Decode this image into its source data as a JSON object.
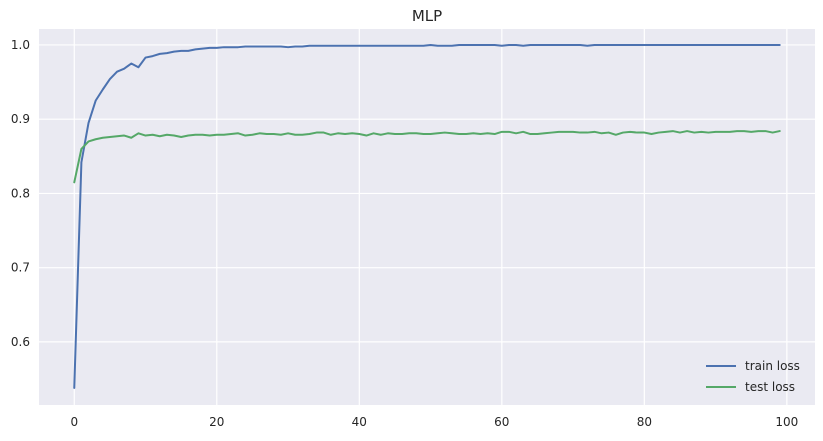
{
  "chart_data": {
    "type": "line",
    "title": "MLP",
    "xlabel": "",
    "ylabel": "",
    "xlim": [
      -4.95,
      103.95
    ],
    "ylim": [
      0.515,
      1.0215
    ],
    "xticks": [
      0,
      20,
      40,
      60,
      80,
      100
    ],
    "yticks": [
      0.6,
      0.7,
      0.8,
      0.9,
      1.0
    ],
    "ytick_labels": [
      "0.6",
      "0.7",
      "0.8",
      "0.9",
      "1.0"
    ],
    "grid": true,
    "legend_position": "bottom-right",
    "background": "#eaeaf2",
    "series": [
      {
        "name": "train loss",
        "color": "#4c72b0",
        "x": [
          0,
          1,
          2,
          3,
          4,
          5,
          6,
          7,
          8,
          9,
          10,
          11,
          12,
          13,
          14,
          15,
          16,
          17,
          18,
          19,
          20,
          21,
          22,
          23,
          24,
          25,
          26,
          27,
          28,
          29,
          30,
          31,
          32,
          33,
          34,
          35,
          36,
          37,
          38,
          39,
          40,
          41,
          42,
          43,
          44,
          45,
          46,
          47,
          48,
          49,
          50,
          51,
          52,
          53,
          54,
          55,
          56,
          57,
          58,
          59,
          60,
          61,
          62,
          63,
          64,
          65,
          66,
          67,
          68,
          69,
          70,
          71,
          72,
          73,
          74,
          75,
          76,
          77,
          78,
          79,
          80,
          81,
          82,
          83,
          84,
          85,
          86,
          87,
          88,
          89,
          90,
          91,
          92,
          93,
          94,
          95,
          96,
          97,
          98,
          99
        ],
        "values": [
          0.538,
          0.842,
          0.895,
          0.925,
          0.94,
          0.954,
          0.964,
          0.968,
          0.975,
          0.97,
          0.983,
          0.985,
          0.988,
          0.989,
          0.991,
          0.992,
          0.992,
          0.994,
          0.995,
          0.996,
          0.996,
          0.997,
          0.997,
          0.997,
          0.998,
          0.998,
          0.998,
          0.998,
          0.998,
          0.998,
          0.997,
          0.998,
          0.998,
          0.999,
          0.999,
          0.999,
          0.999,
          0.999,
          0.999,
          0.999,
          0.999,
          0.999,
          0.999,
          0.999,
          0.999,
          0.999,
          0.999,
          0.999,
          0.999,
          0.999,
          1.0,
          0.999,
          0.999,
          0.999,
          1.0,
          1.0,
          1.0,
          1.0,
          1.0,
          1.0,
          0.999,
          1.0,
          1.0,
          0.999,
          1.0,
          1.0,
          1.0,
          1.0,
          1.0,
          1.0,
          1.0,
          1.0,
          0.999,
          1.0,
          1.0,
          1.0,
          1.0,
          1.0,
          1.0,
          1.0,
          1.0,
          1.0,
          1.0,
          1.0,
          1.0,
          1.0,
          1.0,
          1.0,
          1.0,
          1.0,
          1.0,
          1.0,
          1.0,
          1.0,
          1.0,
          1.0,
          1.0,
          1.0,
          1.0,
          1.0
        ]
      },
      {
        "name": "test loss",
        "color": "#55a868",
        "x": [
          0,
          1,
          2,
          3,
          4,
          5,
          6,
          7,
          8,
          9,
          10,
          11,
          12,
          13,
          14,
          15,
          16,
          17,
          18,
          19,
          20,
          21,
          22,
          23,
          24,
          25,
          26,
          27,
          28,
          29,
          30,
          31,
          32,
          33,
          34,
          35,
          36,
          37,
          38,
          39,
          40,
          41,
          42,
          43,
          44,
          45,
          46,
          47,
          48,
          49,
          50,
          51,
          52,
          53,
          54,
          55,
          56,
          57,
          58,
          59,
          60,
          61,
          62,
          63,
          64,
          65,
          66,
          67,
          68,
          69,
          70,
          71,
          72,
          73,
          74,
          75,
          76,
          77,
          78,
          79,
          80,
          81,
          82,
          83,
          84,
          85,
          86,
          87,
          88,
          89,
          90,
          91,
          92,
          93,
          94,
          95,
          96,
          97,
          98,
          99
        ],
        "values": [
          0.815,
          0.86,
          0.87,
          0.873,
          0.875,
          0.876,
          0.877,
          0.878,
          0.875,
          0.881,
          0.878,
          0.879,
          0.877,
          0.879,
          0.878,
          0.876,
          0.878,
          0.879,
          0.879,
          0.878,
          0.879,
          0.879,
          0.88,
          0.881,
          0.878,
          0.879,
          0.881,
          0.88,
          0.88,
          0.879,
          0.881,
          0.879,
          0.879,
          0.88,
          0.882,
          0.882,
          0.879,
          0.881,
          0.88,
          0.881,
          0.88,
          0.878,
          0.881,
          0.879,
          0.881,
          0.88,
          0.88,
          0.881,
          0.881,
          0.88,
          0.88,
          0.881,
          0.882,
          0.881,
          0.88,
          0.88,
          0.881,
          0.88,
          0.881,
          0.88,
          0.883,
          0.883,
          0.881,
          0.883,
          0.88,
          0.88,
          0.881,
          0.882,
          0.883,
          0.883,
          0.883,
          0.882,
          0.882,
          0.883,
          0.881,
          0.882,
          0.879,
          0.882,
          0.883,
          0.882,
          0.882,
          0.88,
          0.882,
          0.883,
          0.884,
          0.882,
          0.884,
          0.882,
          0.883,
          0.882,
          0.883,
          0.883,
          0.883,
          0.884,
          0.884,
          0.883,
          0.884,
          0.884,
          0.882,
          0.884
        ]
      }
    ]
  }
}
